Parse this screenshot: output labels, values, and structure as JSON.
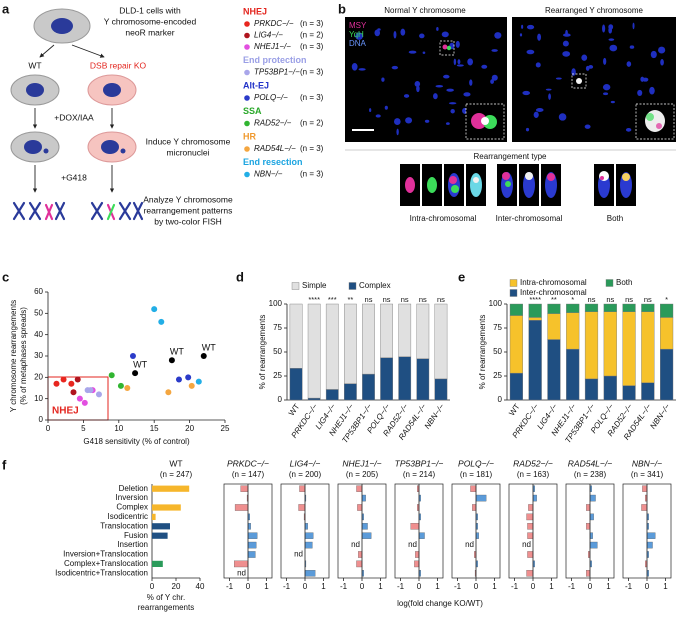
{
  "panel_labels": [
    "a",
    "b",
    "c",
    "d",
    "e",
    "f"
  ],
  "panel_a": {
    "top_text": [
      "DLD-1 cells with",
      "Y chromosome-encoded",
      "neoR marker"
    ],
    "wt_label": "WT",
    "ko_label": "DSB repair KO",
    "dox": "+DOX/IAA",
    "step2": [
      "Induce Y chromosome",
      "micronuclei"
    ],
    "g418": "+G418",
    "step3": [
      "Analyze Y chromosome",
      "rearrangement patterns",
      "by two-color FISH"
    ],
    "legend": [
      {
        "name": "NHEJ",
        "color": "#e3261f",
        "items": [
          {
            "label": "PRKDC−/−",
            "n": "(n = 3)",
            "color": "#e8261f"
          },
          {
            "label": "LIG4−/−",
            "n": "(n = 2)",
            "color": "#b0141e"
          },
          {
            "label": "NHEJ1−/−",
            "n": "(n = 3)",
            "color": "#e24fe0"
          }
        ]
      },
      {
        "name": "End protection",
        "color": "#9a9fe6",
        "items": [
          {
            "label": "TP53BP1−/−",
            "n": "(n = 3)",
            "color": "#a9a6ea"
          }
        ]
      },
      {
        "name": "Alt-EJ",
        "color": "#2233c8",
        "items": [
          {
            "label": "POLQ−/−",
            "n": "(n = 3)",
            "color": "#2b3bc9"
          }
        ]
      },
      {
        "name": "SSA",
        "color": "#2aa82a",
        "items": [
          {
            "label": "RAD52−/−",
            "n": "(n = 2)",
            "color": "#31b531"
          }
        ]
      },
      {
        "name": "HR",
        "color": "#f09a30",
        "items": [
          {
            "label": "RAD54L−/−",
            "n": "(n = 3)",
            "color": "#f4a640"
          }
        ]
      },
      {
        "name": "End resection",
        "color": "#1ba4e0",
        "items": [
          {
            "label": "NBN−/−",
            "n": "(n = 3)",
            "color": "#22aee6"
          }
        ]
      }
    ]
  },
  "panel_b": {
    "normal": "Normal Y chromosome",
    "rearranged": "Rearranged Y chromosome",
    "channels": [
      {
        "label": "MSY",
        "color": "#e0309a"
      },
      {
        "label": "YqH",
        "color": "#3cdc5a"
      },
      {
        "label": "DNA",
        "color": "#6a96ff"
      }
    ],
    "type_title": "Rearrangement type",
    "types": [
      "Intra-chromosomal",
      "Inter-chromosomal",
      "Both"
    ]
  },
  "panel_f": {
    "xlabel": "log(fold change KO/WT)"
  },
  "chart_data": [
    {
      "type": "scatter",
      "xlabel": "G418 sensitivity (% of control)",
      "ylabel": [
        "Y chromosome rearrangements",
        "(% of metaphases spreads)"
      ],
      "annotation": "NHEJ",
      "xlim": [
        0,
        25
      ],
      "xticks": [
        0,
        5,
        10,
        15,
        20,
        25
      ],
      "ylim": [
        0,
        60
      ],
      "yticks": [
        0,
        10,
        20,
        30,
        40,
        50,
        60
      ],
      "series": [
        {
          "color": "#000000",
          "x": [
            12.3,
            17.5,
            22
          ],
          "values": [
            22,
            28,
            30
          ],
          "labels": [
            "WT",
            "WT",
            "WT"
          ]
        },
        {
          "color": "#e8261f",
          "x": [
            1.2,
            2.2,
            3.3
          ],
          "values": [
            17,
            19,
            17
          ]
        },
        {
          "color": "#b0141e",
          "x": [
            4.2,
            3.6
          ],
          "values": [
            19,
            13
          ]
        },
        {
          "color": "#e24fe0",
          "x": [
            4.5,
            5.2,
            6.3
          ],
          "values": [
            10,
            8,
            14
          ]
        },
        {
          "color": "#a9a6ea",
          "x": [
            6,
            7.2,
            5.6
          ],
          "values": [
            14,
            12,
            14
          ]
        },
        {
          "color": "#2b3bc9",
          "x": [
            12,
            18.5,
            19.8
          ],
          "values": [
            30,
            19,
            20
          ]
        },
        {
          "color": "#31b531",
          "x": [
            9,
            10.3
          ],
          "values": [
            21,
            16
          ]
        },
        {
          "color": "#f4a640",
          "x": [
            11.2,
            17,
            20.3
          ],
          "values": [
            15,
            13,
            16
          ]
        },
        {
          "color": "#22aee6",
          "x": [
            15,
            16,
            21.3
          ],
          "values": [
            52,
            46,
            18
          ]
        }
      ]
    },
    {
      "type": "stacked_bar",
      "ylabel": "% of rearrangements",
      "categories": [
        "WT",
        "PRKDC−/−",
        "LIG4−/−",
        "NHEJ1−/−",
        "TP53BP1−/−",
        "POLQ−/−",
        "RAD52−/−",
        "RAD54L−/−",
        "NBN−/−"
      ],
      "ylim": [
        0,
        100
      ],
      "yticks": [
        0,
        25,
        50,
        75,
        100
      ],
      "significance": [
        null,
        "****",
        "***",
        "**",
        "ns",
        "ns",
        "ns",
        "ns",
        "ns"
      ],
      "series": [
        {
          "name": "Complex",
          "color": "#1f4f82",
          "values": [
            33,
            2,
            11,
            17,
            27,
            44,
            45,
            43,
            22
          ]
        },
        {
          "name": "Simple",
          "color": "#e0e0e0",
          "values": [
            67,
            98,
            89,
            83,
            73,
            56,
            55,
            57,
            78
          ]
        }
      ]
    },
    {
      "type": "stacked_bar",
      "ylabel": "% of rearrangements",
      "categories": [
        "WT",
        "PRKDC−/−",
        "LIG4−/−",
        "NHEJ1−/−",
        "TP53BP1−/−",
        "POLQ−/−",
        "RAD52−/−",
        "RAD54L−/−",
        "NBN−/−"
      ],
      "ylim": [
        0,
        100
      ],
      "yticks": [
        0,
        25,
        50,
        75,
        100
      ],
      "significance": [
        null,
        "****",
        "**",
        "*",
        "ns",
        "ns",
        "ns",
        "ns",
        "*"
      ],
      "series": [
        {
          "name": "Inter-chromosomal",
          "color": "#1f4f82",
          "values": [
            28,
            83,
            63,
            53,
            22,
            25,
            15,
            18,
            53
          ]
        },
        {
          "name": "Intra-chromosomal",
          "color": "#f6c22b",
          "values": [
            60,
            3,
            27,
            38,
            70,
            67,
            77,
            74,
            33
          ]
        },
        {
          "name": "Both",
          "color": "#2a9a5a",
          "values": [
            12,
            14,
            10,
            9,
            8,
            8,
            8,
            8,
            14
          ]
        }
      ]
    },
    {
      "type": "hbar",
      "title": "WT",
      "subtitle": "(n = 247)",
      "categories": [
        "Deletion",
        "Inversion",
        "Complex",
        "Isodicentric",
        "Translocation",
        "Fusion",
        "Insertion",
        "Inversion+Translocation",
        "Complex+Translocation",
        "Isodicentric+Translocation"
      ],
      "values": [
        31,
        0,
        24,
        3,
        15,
        13,
        0,
        0,
        9,
        0
      ],
      "colors": [
        "#f6b62b",
        "#f6b62b",
        "#f6b62b",
        "#f6b62b",
        "#1f4f82",
        "#1f4f82",
        "#1f4f82",
        "#2a9a5a",
        "#2a9a5a",
        "#2a9a5a"
      ],
      "xlim": [
        0,
        40
      ],
      "xticks": [
        0,
        20,
        40
      ],
      "xlabel": [
        "% of Y chr.",
        "rearrangements"
      ]
    },
    {
      "type": "diverging_hbar",
      "title": "PRKDC−/−",
      "subtitle": "(n = 147)",
      "values": [
        -0.4,
        -0.05,
        -0.7,
        0.1,
        0.15,
        0.5,
        0.45,
        0.4,
        -0.75,
        null
      ],
      "value_labels": [
        null,
        null,
        null,
        null,
        null,
        null,
        null,
        null,
        null,
        "nd"
      ],
      "xlim": [
        -1.3,
        1.3
      ],
      "xticks": [
        -1,
        0,
        1
      ],
      "neg_color": "#ef8f8f",
      "pos_color": "#5b9bd9"
    },
    {
      "type": "diverging_hbar",
      "title": "LIG4−/−",
      "subtitle": "(n = 200)",
      "values": [
        -0.3,
        0.05,
        -0.35,
        -0.05,
        0.15,
        0.45,
        0.4,
        null,
        0.05,
        0.55
      ],
      "value_labels": [
        null,
        null,
        null,
        null,
        null,
        null,
        null,
        "nd",
        null,
        null
      ],
      "xlim": [
        -1.3,
        1.3
      ],
      "xticks": [
        -1,
        0,
        1
      ],
      "neg_color": "#ef8f8f",
      "pos_color": "#5b9bd9"
    },
    {
      "type": "diverging_hbar",
      "title": "NHEJ1−/−",
      "subtitle": "(n = 205)",
      "values": [
        -0.3,
        0.2,
        -0.25,
        0.1,
        0.3,
        0.5,
        null,
        -0.2,
        -0.3,
        0.1
      ],
      "value_labels": [
        null,
        null,
        null,
        null,
        null,
        null,
        "nd",
        null,
        null,
        null
      ],
      "xlim": [
        -1.3,
        1.3
      ],
      "xticks": [
        -1,
        0,
        1
      ],
      "neg_color": "#ef8f8f",
      "pos_color": "#5b9bd9"
    },
    {
      "type": "diverging_hbar",
      "title": "TP53BP1−/−",
      "subtitle": "(n = 214)",
      "values": [
        -0.1,
        0.1,
        -0.1,
        0.1,
        -0.45,
        0.3,
        null,
        -0.2,
        -0.25,
        0.1
      ],
      "value_labels": [
        null,
        null,
        null,
        null,
        null,
        null,
        "nd",
        null,
        null,
        null
      ],
      "xlim": [
        -1.3,
        1.3
      ],
      "xticks": [
        -1,
        0,
        1
      ],
      "neg_color": "#ef8f8f",
      "pos_color": "#5b9bd9"
    },
    {
      "type": "diverging_hbar",
      "title": "POLQ−/−",
      "subtitle": "(n = 181)",
      "values": [
        -0.3,
        0.55,
        -0.2,
        0.1,
        0.1,
        0.15,
        null,
        -0.1,
        0.1,
        -0.05
      ],
      "value_labels": [
        null,
        null,
        null,
        null,
        null,
        null,
        "nd",
        null,
        null,
        null
      ],
      "xlim": [
        -1.3,
        1.3
      ],
      "xticks": [
        -1,
        0,
        1
      ],
      "neg_color": "#ef8f8f",
      "pos_color": "#5b9bd9"
    },
    {
      "type": "diverging_hbar",
      "title": "RAD52−/−",
      "subtitle": "(n = 163)",
      "values": [
        0.1,
        0.2,
        -0.25,
        -0.35,
        -0.3,
        -0.3,
        null,
        -0.3,
        0.1,
        -0.35
      ],
      "value_labels": [
        null,
        null,
        null,
        null,
        null,
        null,
        "nd",
        null,
        null,
        null
      ],
      "xlim": [
        -1.3,
        1.3
      ],
      "xticks": [
        -1,
        0,
        1
      ],
      "neg_color": "#ef8f8f",
      "pos_color": "#5b9bd9"
    },
    {
      "type": "diverging_hbar",
      "title": "RAD54L−/−",
      "subtitle": "(n = 238)",
      "values": [
        0.1,
        0.3,
        -0.2,
        0.2,
        -0.2,
        0.15,
        0.4,
        -0.1,
        0.1,
        -0.2
      ],
      "xlim": [
        -1.3,
        1.3
      ],
      "xticks": [
        -1,
        0,
        1
      ],
      "neg_color": "#ef8f8f",
      "pos_color": "#5b9bd9"
    },
    {
      "type": "diverging_hbar",
      "title": "NBN−/−",
      "subtitle": "(n = 341)",
      "values": [
        -0.25,
        -0.1,
        -0.3,
        0.1,
        0.1,
        0.45,
        0.3,
        0.1,
        -0.1,
        0.1
      ],
      "xlim": [
        -1.3,
        1.3
      ],
      "xticks": [
        -1,
        0,
        1
      ],
      "neg_color": "#ef8f8f",
      "pos_color": "#5b9bd9"
    }
  ]
}
